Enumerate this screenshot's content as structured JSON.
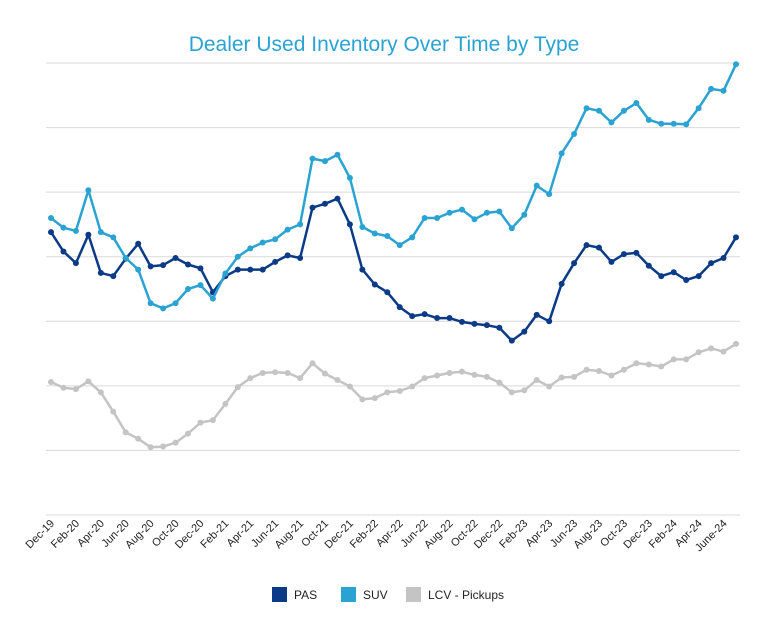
{
  "chart_data": {
    "type": "line",
    "title": "Dealer Used Inventory Over Time by Type",
    "xlabel": "",
    "ylabel": "",
    "grid": true,
    "legend_position": "bottom",
    "ylim": [
      0,
      7
    ],
    "x_tick_labels": [
      "Dec-19",
      "Feb-20",
      "Apr-20",
      "Jun-20",
      "Aug-20",
      "Oct-20",
      "Dec-20",
      "Feb-21",
      "Apr-21",
      "Jun-21",
      "Aug-21",
      "Oct-21",
      "Dec-21",
      "Feb-22",
      "Apr-22",
      "Jun-22",
      "Aug-22",
      "Oct-22",
      "Dec-22",
      "Feb-23",
      "Apr-23",
      "Jun-23",
      "Aug-23",
      "Oct-23",
      "Dec-23",
      "Feb-24",
      "Apr-24",
      "June-24"
    ],
    "series": [
      {
        "name": "PAS",
        "color": "#0b3a86",
        "values": [
          4.38,
          4.08,
          3.9,
          4.34,
          3.75,
          3.7,
          3.97,
          4.2,
          3.85,
          3.87,
          3.98,
          3.88,
          3.82,
          3.45,
          3.7,
          3.8,
          3.8,
          3.8,
          3.92,
          4.02,
          3.98,
          4.76,
          4.82,
          4.9,
          4.5,
          3.8,
          3.57,
          3.45,
          3.22,
          3.08,
          3.11,
          3.05,
          3.05,
          2.99,
          2.96,
          2.94,
          2.9,
          2.7,
          2.84,
          3.1,
          3.0,
          3.58,
          3.9,
          4.18,
          4.14,
          3.92,
          4.04,
          4.06,
          3.86,
          3.7,
          3.76,
          3.64,
          3.7,
          3.9,
          3.98,
          4.3
        ]
      },
      {
        "name": "SUV",
        "color": "#2aa3d3",
        "values": [
          4.6,
          4.45,
          4.4,
          5.03,
          4.38,
          4.3,
          3.98,
          3.8,
          3.28,
          3.2,
          3.28,
          3.5,
          3.56,
          3.35,
          3.74,
          4.0,
          4.13,
          4.22,
          4.27,
          4.42,
          4.5,
          5.52,
          5.48,
          5.58,
          5.22,
          4.46,
          4.36,
          4.32,
          4.18,
          4.3,
          4.6,
          4.6,
          4.68,
          4.73,
          4.58,
          4.68,
          4.7,
          4.44,
          4.65,
          5.1,
          4.97,
          5.6,
          5.9,
          6.3,
          6.26,
          6.08,
          6.26,
          6.38,
          6.12,
          6.06,
          6.06,
          6.05,
          6.3,
          6.6,
          6.57,
          6.98
        ]
      },
      {
        "name": "LCV - Pickups",
        "color": "#c4c4c4",
        "values": [
          2.06,
          1.97,
          1.95,
          2.07,
          1.9,
          1.6,
          1.28,
          1.18,
          1.05,
          1.06,
          1.12,
          1.26,
          1.43,
          1.47,
          1.72,
          1.98,
          2.12,
          2.2,
          2.21,
          2.2,
          2.12,
          2.35,
          2.19,
          2.09,
          1.99,
          1.79,
          1.81,
          1.9,
          1.92,
          1.99,
          2.12,
          2.16,
          2.2,
          2.22,
          2.17,
          2.14,
          2.05,
          1.9,
          1.93,
          2.09,
          1.99,
          2.13,
          2.14,
          2.25,
          2.23,
          2.16,
          2.25,
          2.35,
          2.33,
          2.3,
          2.41,
          2.41,
          2.52,
          2.58,
          2.53,
          2.65
        ]
      }
    ]
  }
}
